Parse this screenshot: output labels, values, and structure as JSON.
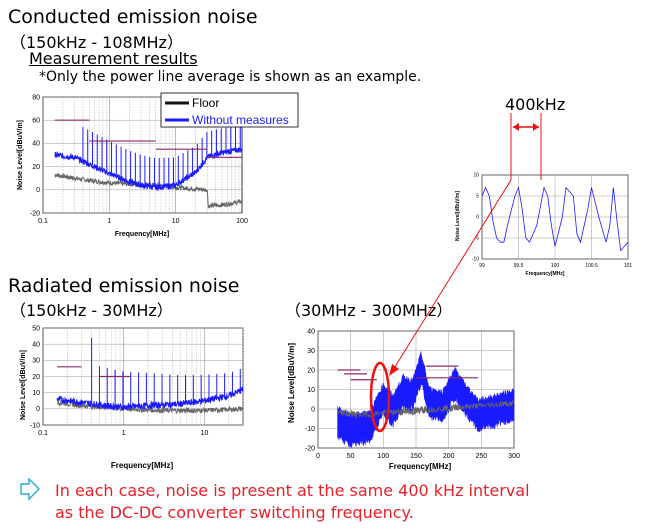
{
  "heading_conducted": "Conducted emission noise",
  "range_conducted": "（150kHz - 108MHz）",
  "measurement_results": "Measurement results",
  "note": "*Only the power line average is shown as an example.",
  "heading_radiated": "Radiated emission noise",
  "range_radiated_low": "（150kHz - 30MHz）",
  "range_radiated_high": "（30MHz - 300MHz）",
  "interval_label": "400kHz",
  "conclusion_line1": "In each case, noise is present at the same 400 kHz interval",
  "conclusion_line2": "as the DC-DC converter switching frequency.",
  "colors": {
    "floor": "#111111",
    "floor_trace": "#666666",
    "measure": "#1a1aff",
    "limit": "#8b2a6b",
    "highlight": "#ee1111",
    "arrow": "#29a9d6"
  },
  "chart_data": [
    {
      "id": "conducted",
      "type": "line",
      "xscale": "log",
      "xlim": [
        0.1,
        100
      ],
      "ylim": [
        -20,
        80
      ],
      "xticks": [
        "0.1",
        "1",
        "10",
        "100"
      ],
      "yticks": [
        "-20",
        "0",
        "20",
        "40",
        "60",
        "80"
      ],
      "xlabel": "Frequency[MHz]",
      "ylabel": "Noise Level[dBuV/m]",
      "legend": [
        "Floor",
        "Without measures"
      ],
      "limit_lines": [
        {
          "x": [
            0.15,
            0.5
          ],
          "y": 60
        },
        {
          "x": [
            0.5,
            5
          ],
          "y": 42
        },
        {
          "x": [
            5,
            30
          ],
          "y": 35
        },
        {
          "x": [
            30,
            100
          ],
          "y": 28
        }
      ],
      "series_floor": {
        "x": [
          0.15,
          0.3,
          0.5,
          1,
          2,
          5,
          10,
          30,
          31,
          50,
          100
        ],
        "y": [
          13,
          10,
          8,
          6,
          5,
          4,
          2,
          0,
          -14,
          -13,
          -10
        ]
      },
      "series_measure": {
        "x": [
          0.15,
          0.3,
          0.5,
          1,
          2,
          3,
          5,
          10,
          20,
          30,
          50,
          100
        ],
        "y": [
          30,
          28,
          22,
          14,
          7,
          4,
          2,
          4,
          15,
          28,
          32,
          35
        ]
      }
    },
    {
      "id": "zoom",
      "type": "line",
      "xlim": [
        99,
        101
      ],
      "ylim": [
        -10,
        10
      ],
      "xticks": [
        "99",
        "99.5",
        "100",
        "100.5",
        "101"
      ],
      "yticks": [
        "-10",
        "-5",
        "0",
        "5",
        "10"
      ],
      "xlabel": "Frequency[MHz]",
      "ylabel": "Noise Level[dBuV/m]",
      "series": {
        "x": [
          99,
          99.05,
          99.1,
          99.15,
          99.2,
          99.25,
          99.3,
          99.35,
          99.45,
          99.5,
          99.55,
          99.6,
          99.65,
          99.75,
          99.85,
          99.9,
          99.95,
          100.0,
          100.1,
          100.15,
          100.25,
          100.3,
          100.35,
          100.45,
          100.5,
          100.6,
          100.7,
          100.75,
          100.8,
          100.85,
          100.9,
          101
        ],
        "y": [
          5,
          7,
          5,
          -1,
          -5,
          -6,
          -6,
          -2,
          5,
          7,
          2,
          -5,
          -6,
          -2,
          7,
          5,
          -2,
          -7,
          0,
          7,
          5,
          -4,
          -6,
          2,
          7,
          0,
          -6,
          -2,
          7,
          -1,
          -8,
          -6
        ]
      }
    },
    {
      "id": "radiated_low",
      "type": "line",
      "xscale": "log",
      "xlim": [
        0.1,
        30
      ],
      "ylim": [
        -10,
        50
      ],
      "xticks": [
        "0.1",
        "1",
        "10"
      ],
      "yticks": [
        "-10",
        "0",
        "10",
        "20",
        "30",
        "40",
        "50"
      ],
      "xlabel": "Frequency[MHz]",
      "ylabel": "Noise Level[dBuV/m]",
      "limit_lines": [
        {
          "x": [
            0.15,
            0.3
          ],
          "y": 26
        },
        {
          "x": [
            0.5,
            1.2
          ],
          "y": 20
        }
      ],
      "series_floor": {
        "x": [
          0.15,
          0.3,
          1,
          3,
          10,
          30
        ],
        "y": [
          4,
          2,
          0,
          -1,
          -1,
          0
        ]
      },
      "series_measure": {
        "x": [
          0.15,
          0.3,
          0.6,
          1,
          2,
          5,
          10,
          20,
          30
        ],
        "y": [
          6,
          4,
          2,
          1,
          2,
          3,
          5,
          8,
          12
        ]
      }
    },
    {
      "id": "radiated_high",
      "type": "line",
      "xlim": [
        0,
        300
      ],
      "ylim": [
        -20,
        40
      ],
      "xticks": [
        "0",
        "50",
        "100",
        "150",
        "200",
        "250",
        "300"
      ],
      "yticks": [
        "-20",
        "-10",
        "0",
        "10",
        "20",
        "30",
        "40"
      ],
      "xlabel": "Frequency[MHz]",
      "ylabel": "Noise Level[dBuV/m]",
      "limit_lines": [
        {
          "x": [
            30,
            65
          ],
          "y": 20
        },
        {
          "x": [
            40,
            75
          ],
          "y": 18
        },
        {
          "x": [
            50,
            90
          ],
          "y": 15
        },
        {
          "x": [
            165,
            215
          ],
          "y": 22
        },
        {
          "x": [
            150,
            245
          ],
          "y": 16
        }
      ],
      "series_floor": {
        "x": [
          30,
          60,
          100,
          140,
          180,
          220,
          260,
          300
        ],
        "y": [
          -2,
          -3,
          -2,
          -1,
          0,
          1,
          2,
          3
        ]
      },
      "series_measure": {
        "x": [
          30,
          50,
          80,
          100,
          115,
          130,
          145,
          158,
          170,
          190,
          210,
          225,
          245,
          270,
          300
        ],
        "y": [
          -4,
          -8,
          -6,
          8,
          2,
          12,
          10,
          24,
          6,
          4,
          16,
          8,
          0,
          2,
          5
        ]
      }
    }
  ]
}
